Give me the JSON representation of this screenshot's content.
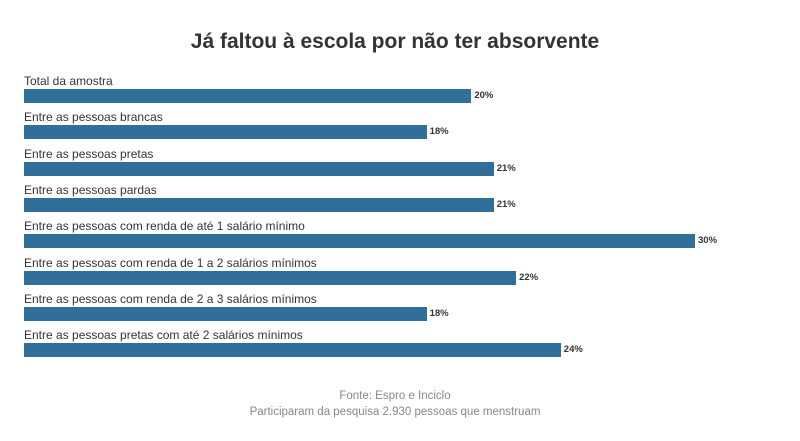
{
  "chart_data": {
    "type": "bar",
    "orientation": "horizontal",
    "title": "Já faltou à escola por não ter absorvente",
    "categories": [
      "Total da amostra",
      "Entre as pessoas brancas",
      "Entre as pessoas pretas",
      "Entre as pessoas pardas",
      "Entre as pessoas com renda de até 1 salário mínimo",
      "Entre as pessoas com renda de 1 a 2 salários mínimos",
      "Entre as pessoas com renda de 2 a 3 salários mínimos",
      "Entre as pessoas pretas com até 2 salários mínimos"
    ],
    "values": [
      20,
      18,
      21,
      21,
      30,
      22,
      18,
      24
    ],
    "value_labels": [
      "20%",
      "18%",
      "21%",
      "21%",
      "30%",
      "22%",
      "18%",
      "24%"
    ],
    "unit": "%",
    "xlim": [
      0,
      30
    ],
    "grid": false,
    "legend": "none",
    "bar_color": "#2f6f9a"
  },
  "footer": {
    "source": "Fonte: Espro e Inciclo",
    "note": "Participaram da pesquisa 2.930 pessoas que menstruam"
  }
}
